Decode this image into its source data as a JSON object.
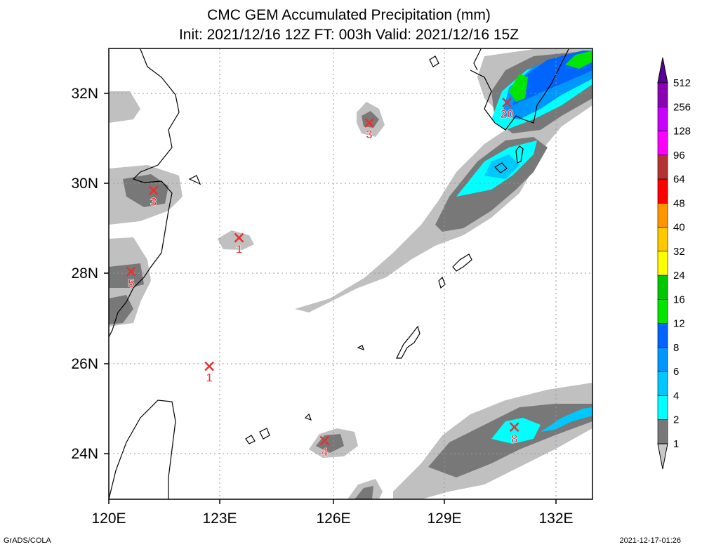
{
  "title_line1": "CMC GEM Accumulated Precipitation (mm)",
  "title_line2": "Init: 2021/12/16 12Z  FT: 003h  Valid: 2021/12/16 15Z",
  "footer_left": "GrADS/COLA",
  "footer_right": "2021-12-17-01:26",
  "chart_data": {
    "type": "heatmap",
    "title": "CMC GEM Accumulated Precipitation (mm)",
    "xlabel": "",
    "ylabel": "",
    "xlim": [
      120,
      133
    ],
    "ylim": [
      23,
      33
    ],
    "x_ticks": [
      120,
      123,
      126,
      129,
      132
    ],
    "x_tick_labels": [
      "120E",
      "123E",
      "126E",
      "129E",
      "132E"
    ],
    "y_ticks": [
      24,
      26,
      28,
      30,
      32
    ],
    "y_tick_labels": [
      "24N",
      "26N",
      "28N",
      "30N",
      "32N"
    ],
    "grid": true,
    "colorbar": {
      "levels": [
        "1",
        "2",
        "4",
        "6",
        "8",
        "12",
        "16",
        "24",
        "32",
        "40",
        "48",
        "64",
        "96",
        "128",
        "256",
        "512"
      ],
      "colors": [
        "#c8c8c8",
        "#787878",
        "#00ffff",
        "#00c8ff",
        "#0096ff",
        "#0064ff",
        "#00e600",
        "#00c800",
        "#ffff00",
        "#ffc800",
        "#ff9600",
        "#ff0000",
        "#b43232",
        "#ff00ff",
        "#c800ff",
        "#8c00b4",
        "#5a0096"
      ]
    },
    "markers": [
      {
        "lon": 121.2,
        "lat": 29.85,
        "value": "3"
      },
      {
        "lon": 123.5,
        "lat": 28.8,
        "value": "1"
      },
      {
        "lon": 120.6,
        "lat": 28.05,
        "value": "5"
      },
      {
        "lon": 122.7,
        "lat": 25.95,
        "value": "1"
      },
      {
        "lon": 127.0,
        "lat": 31.35,
        "value": "3"
      },
      {
        "lon": 125.8,
        "lat": 24.3,
        "value": "4"
      },
      {
        "lon": 130.9,
        "lat": 24.6,
        "value": "8"
      },
      {
        "lon": 130.7,
        "lat": 31.8,
        "value": "20"
      }
    ]
  }
}
